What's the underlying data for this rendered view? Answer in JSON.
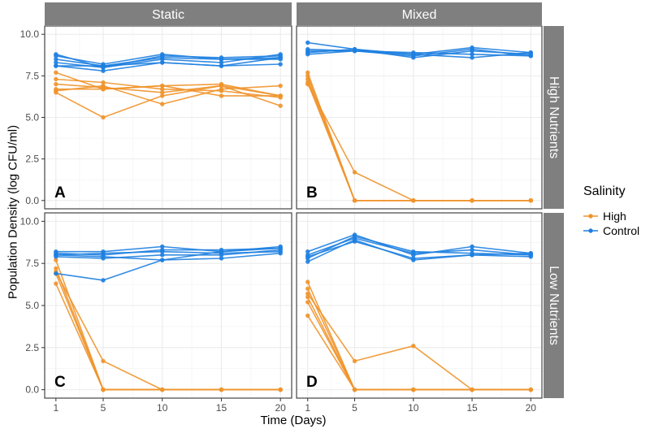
{
  "chart_data": {
    "type": "line",
    "facet_cols": [
      "Static",
      "Mixed"
    ],
    "facet_rows": [
      "High Nutrients",
      "Low Nutrients"
    ],
    "xlabel": "Time (Days)",
    "ylabel": "Population Density (log CFU/ml)",
    "x": [
      1,
      5,
      10,
      15,
      20
    ],
    "x_ticks": [
      "1",
      "5",
      "10",
      "15",
      "20"
    ],
    "y_ticks": [
      "0.0",
      "2.5",
      "5.0",
      "7.5",
      "10.0"
    ],
    "xlim": [
      0.05,
      20.95
    ],
    "ylim": [
      -0.5,
      10.5
    ],
    "legend": {
      "title": "Salinity",
      "entries": [
        {
          "name": "High",
          "color": "#F0932B"
        },
        {
          "name": "Control",
          "color": "#1E7FE0"
        }
      ]
    },
    "panels": [
      {
        "label": "A",
        "col": "Static",
        "row": "High Nutrients",
        "series": [
          {
            "salinity": "High",
            "values": [
              7.7,
              6.7,
              6.9,
              7.0,
              6.3
            ]
          },
          {
            "salinity": "High",
            "values": [
              7.3,
              7.1,
              6.7,
              6.6,
              6.2
            ]
          },
          {
            "salinity": "High",
            "values": [
              7.0,
              6.8,
              6.5,
              6.9,
              6.3
            ]
          },
          {
            "salinity": "High",
            "values": [
              6.7,
              6.7,
              6.9,
              6.3,
              6.3
            ]
          },
          {
            "salinity": "High",
            "values": [
              6.5,
              5.0,
              6.3,
              6.9,
              5.7
            ]
          },
          {
            "salinity": "High",
            "values": [
              6.6,
              6.9,
              5.8,
              6.7,
              6.9
            ]
          },
          {
            "salinity": "Control",
            "values": [
              8.8,
              8.0,
              8.7,
              8.6,
              8.7
            ]
          },
          {
            "salinity": "Control",
            "values": [
              8.7,
              8.2,
              8.8,
              8.5,
              8.6
            ]
          },
          {
            "salinity": "Control",
            "values": [
              8.5,
              8.1,
              8.6,
              8.5,
              8.5
            ]
          },
          {
            "salinity": "Control",
            "values": [
              8.3,
              8.0,
              8.5,
              8.3,
              8.8
            ]
          },
          {
            "salinity": "Control",
            "values": [
              8.1,
              7.8,
              8.3,
              8.1,
              8.2
            ]
          },
          {
            "salinity": "Control",
            "values": [
              8.1,
              8.1,
              8.3,
              8.1,
              8.6
            ]
          }
        ]
      },
      {
        "label": "B",
        "col": "Mixed",
        "row": "High Nutrients",
        "series": [
          {
            "salinity": "High",
            "values": [
              7.7,
              0.0,
              0.0,
              0.0,
              0.0
            ]
          },
          {
            "salinity": "High",
            "values": [
              7.5,
              0.0,
              0.0,
              0.0,
              0.0
            ]
          },
          {
            "salinity": "High",
            "values": [
              7.3,
              0.0,
              0.0,
              0.0,
              0.0
            ]
          },
          {
            "salinity": "High",
            "values": [
              7.1,
              0.0,
              0.0,
              0.0,
              0.0
            ]
          },
          {
            "salinity": "High",
            "values": [
              7.0,
              1.7,
              0.0,
              0.0,
              0.0
            ]
          },
          {
            "salinity": "Control",
            "values": [
              9.5,
              9.1,
              8.8,
              9.2,
              8.9
            ]
          },
          {
            "salinity": "Control",
            "values": [
              9.0,
              9.0,
              8.9,
              8.8,
              8.7
            ]
          },
          {
            "salinity": "Control",
            "values": [
              8.9,
              9.1,
              8.6,
              9.0,
              8.8
            ]
          },
          {
            "salinity": "Control",
            "values": [
              8.8,
              9.0,
              8.8,
              8.6,
              8.9
            ]
          },
          {
            "salinity": "Control",
            "values": [
              9.1,
              9.0,
              8.7,
              9.1,
              8.7
            ]
          }
        ]
      },
      {
        "label": "C",
        "col": "Static",
        "row": "Low Nutrients",
        "series": [
          {
            "salinity": "High",
            "values": [
              7.7,
              0.0,
              0.0,
              0.0,
              0.0
            ]
          },
          {
            "salinity": "High",
            "values": [
              7.2,
              0.0,
              0.0,
              0.0,
              0.0
            ]
          },
          {
            "salinity": "High",
            "values": [
              7.0,
              1.7,
              0.0,
              0.0,
              0.0
            ]
          },
          {
            "salinity": "High",
            "values": [
              6.9,
              0.0,
              0.0,
              0.0,
              0.0
            ]
          },
          {
            "salinity": "High",
            "values": [
              6.3,
              0.0,
              0.0,
              0.0,
              0.0
            ]
          },
          {
            "salinity": "Control",
            "values": [
              8.2,
              8.2,
              8.5,
              8.2,
              8.5
            ]
          },
          {
            "salinity": "Control",
            "values": [
              8.1,
              8.0,
              8.3,
              8.3,
              8.4
            ]
          },
          {
            "salinity": "Control",
            "values": [
              8.0,
              8.1,
              8.2,
              8.1,
              8.2
            ]
          },
          {
            "salinity": "Control",
            "values": [
              7.9,
              7.8,
              8.0,
              8.0,
              8.3
            ]
          },
          {
            "salinity": "Control",
            "values": [
              8.0,
              7.9,
              7.7,
              7.8,
              8.1
            ]
          },
          {
            "salinity": "Control",
            "values": [
              6.9,
              6.5,
              7.7,
              8.2,
              8.4
            ]
          }
        ]
      },
      {
        "label": "D",
        "col": "Mixed",
        "row": "Low Nutrients",
        "series": [
          {
            "salinity": "High",
            "values": [
              6.4,
              0.0,
              0.0,
              0.0,
              0.0
            ]
          },
          {
            "salinity": "High",
            "values": [
              6.0,
              0.0,
              0.0,
              0.0,
              0.0
            ]
          },
          {
            "salinity": "High",
            "values": [
              5.7,
              1.7,
              2.6,
              0.0,
              0.0
            ]
          },
          {
            "salinity": "High",
            "values": [
              5.5,
              0.0,
              0.0,
              0.0,
              0.0
            ]
          },
          {
            "salinity": "High",
            "values": [
              5.2,
              0.0,
              0.0,
              0.0,
              0.0
            ]
          },
          {
            "salinity": "High",
            "values": [
              4.4,
              0.0,
              0.0,
              0.0,
              0.0
            ]
          },
          {
            "salinity": "Control",
            "values": [
              8.2,
              9.2,
              8.0,
              8.5,
              8.1
            ]
          },
          {
            "salinity": "Control",
            "values": [
              8.0,
              9.0,
              8.1,
              8.3,
              8.0
            ]
          },
          {
            "salinity": "Control",
            "values": [
              7.9,
              8.8,
              7.8,
              8.0,
              7.9
            ]
          },
          {
            "salinity": "Control",
            "values": [
              7.8,
              9.1,
              8.2,
              8.1,
              8.0
            ]
          },
          {
            "salinity": "Control",
            "values": [
              7.6,
              8.9,
              7.7,
              8.0,
              8.1
            ]
          }
        ]
      }
    ]
  }
}
